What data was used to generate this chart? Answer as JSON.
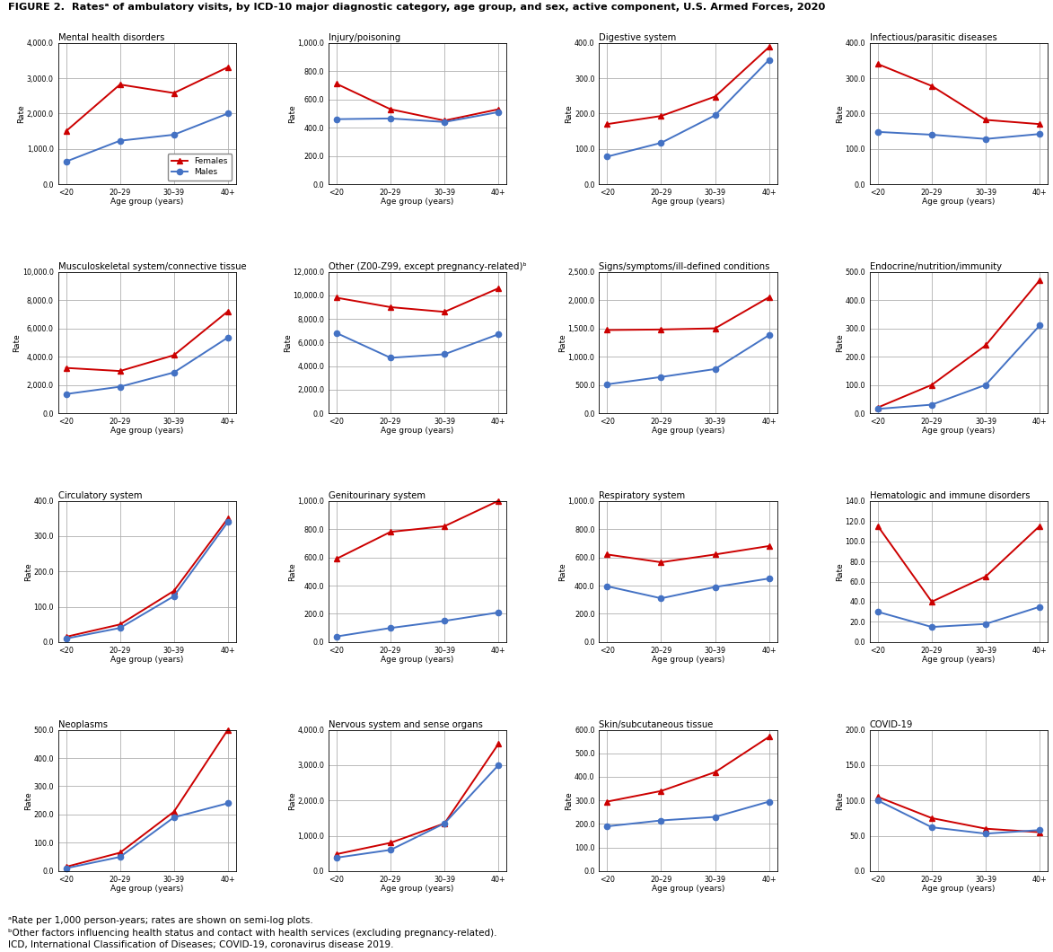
{
  "title": "FIGURE 2.  Ratesᵃ of ambulatory visits, by ICD-10 major diagnostic category, age group, and sex, active component, U.S. Armed Forces, 2020",
  "footnotes": [
    "ᵃRate per 1,000 person-years; rates are shown on semi-log plots.",
    "ᵇOther factors influencing health status and contact with health services (excluding pregnancy-related).",
    "ICD, International Classification of Diseases; COVID-19, coronavirus disease 2019."
  ],
  "x_labels": [
    "<20",
    "20–29",
    "30–39",
    "40+"
  ],
  "female_color": "#cc0000",
  "male_color": "#4472c4",
  "subplots": [
    {
      "title": "Mental health disorders",
      "females": [
        1500,
        2820,
        2580,
        3310
      ],
      "males": [
        640,
        1230,
        1400,
        2000
      ],
      "ylim": [
        0,
        4000
      ],
      "yticks": [
        0,
        1000,
        2000,
        3000,
        4000
      ],
      "yticklabels": [
        "0.0",
        "1,000.0",
        "2,000.0",
        "3,000.0",
        "4,000.0"
      ],
      "show_legend": true
    },
    {
      "title": "Injury/poisoning",
      "females": [
        710,
        530,
        450,
        530
      ],
      "males": [
        460,
        465,
        440,
        510
      ],
      "ylim": [
        0,
        1000
      ],
      "yticks": [
        0,
        200,
        400,
        600,
        800,
        1000
      ],
      "yticklabels": [
        "0.0",
        "200.0",
        "400.0",
        "600.0",
        "800.0",
        "1,000.0"
      ],
      "show_legend": false
    },
    {
      "title": "Digestive system",
      "females": [
        170,
        193,
        248,
        388
      ],
      "males": [
        78,
        117,
        195,
        352
      ],
      "ylim": [
        0,
        400
      ],
      "yticks": [
        0,
        100,
        200,
        300,
        400
      ],
      "yticklabels": [
        "0.0",
        "100.0",
        "200.0",
        "300.0",
        "400.0"
      ],
      "show_legend": false
    },
    {
      "title": "Infectious/parasitic diseases",
      "females": [
        340,
        278,
        182,
        170
      ],
      "males": [
        148,
        140,
        128,
        142
      ],
      "ylim": [
        0,
        400
      ],
      "yticks": [
        0,
        100,
        200,
        300,
        400
      ],
      "yticklabels": [
        "0.0",
        "100.0",
        "200.0",
        "300.0",
        "400.0"
      ],
      "show_legend": false
    },
    {
      "title": "Musculoskeletal system/connective tissue",
      "females": [
        3200,
        2980,
        4100,
        7200
      ],
      "males": [
        1350,
        1870,
        2880,
        5350
      ],
      "ylim": [
        0,
        10000
      ],
      "yticks": [
        0,
        2000,
        4000,
        6000,
        8000,
        10000
      ],
      "yticklabels": [
        "0.0",
        "2,000.0",
        "4,000.0",
        "6,000.0",
        "8,000.0",
        "10,000.0"
      ],
      "show_legend": false
    },
    {
      "title": "Other (Z00-Z99, except pregnancy-related)ᵇ",
      "females": [
        9800,
        9000,
        8600,
        10600
      ],
      "males": [
        6800,
        4700,
        5000,
        6700
      ],
      "ylim": [
        0,
        12000
      ],
      "yticks": [
        0,
        2000,
        4000,
        6000,
        8000,
        10000,
        12000
      ],
      "yticklabels": [
        "0.0",
        "2,000.0",
        "4,000.0",
        "6,000.0",
        "8,000.0",
        "10,000.0",
        "12,000.0"
      ],
      "show_legend": false
    },
    {
      "title": "Signs/symptoms/ill-defined conditions",
      "females": [
        1470,
        1480,
        1500,
        2050
      ],
      "males": [
        510,
        640,
        780,
        1380
      ],
      "ylim": [
        0,
        2500
      ],
      "yticks": [
        0,
        500,
        1000,
        1500,
        2000,
        2500
      ],
      "yticklabels": [
        "0.0",
        "500.0",
        "1,000.0",
        "1,500.0",
        "2,000.0",
        "2,500.0"
      ],
      "show_legend": false
    },
    {
      "title": "Endocrine/nutrition/immunity",
      "females": [
        20,
        100,
        240,
        470
      ],
      "males": [
        15,
        30,
        100,
        310
      ],
      "ylim": [
        0,
        500
      ],
      "yticks": [
        0,
        100,
        200,
        300,
        400,
        500
      ],
      "yticklabels": [
        "0.0",
        "100.0",
        "200.0",
        "300.0",
        "400.0",
        "500.0"
      ],
      "show_legend": false
    },
    {
      "title": "Circulatory system",
      "females": [
        15,
        50,
        145,
        350
      ],
      "males": [
        10,
        40,
        130,
        340
      ],
      "ylim": [
        0,
        400
      ],
      "yticks": [
        0,
        100,
        200,
        300,
        400
      ],
      "yticklabels": [
        "0.0",
        "100.0",
        "200.0",
        "300.0",
        "400.0"
      ],
      "show_legend": false
    },
    {
      "title": "Genitourinary system",
      "females": [
        590,
        780,
        820,
        1000
      ],
      "males": [
        40,
        100,
        150,
        210
      ],
      "ylim": [
        0,
        1000
      ],
      "yticks": [
        0,
        200,
        400,
        600,
        800,
        1000
      ],
      "yticklabels": [
        "0.0",
        "200.0",
        "400.0",
        "600.0",
        "800.0",
        "1,000.0"
      ],
      "show_legend": false
    },
    {
      "title": "Respiratory system",
      "females": [
        620,
        565,
        620,
        680
      ],
      "males": [
        395,
        310,
        390,
        450
      ],
      "ylim": [
        0,
        1000
      ],
      "yticks": [
        0,
        200,
        400,
        600,
        800,
        1000
      ],
      "yticklabels": [
        "0.0",
        "200.0",
        "400.0",
        "600.0",
        "800.0",
        "1,000.0"
      ],
      "show_legend": false
    },
    {
      "title": "Hematologic and immune disorders",
      "females": [
        115,
        40,
        65,
        115
      ],
      "males": [
        30,
        15,
        18,
        35
      ],
      "ylim": [
        0,
        140
      ],
      "yticks": [
        0,
        20,
        40,
        60,
        80,
        100,
        120,
        140
      ],
      "yticklabels": [
        "0.0",
        "20.0",
        "40.0",
        "60.0",
        "80.0",
        "100.0",
        "120.0",
        "140.0"
      ],
      "show_legend": false
    },
    {
      "title": "Neoplasms",
      "females": [
        15,
        65,
        210,
        500
      ],
      "males": [
        10,
        50,
        190,
        240
      ],
      "ylim": [
        0,
        500
      ],
      "yticks": [
        0,
        100,
        200,
        300,
        400,
        500
      ],
      "yticklabels": [
        "0.0",
        "100.0",
        "200.0",
        "300.0",
        "400.0",
        "500.0"
      ],
      "show_legend": false
    },
    {
      "title": "Nervous system and sense organs",
      "females": [
        480,
        800,
        1350,
        3600
      ],
      "males": [
        380,
        600,
        1350,
        3000
      ],
      "ylim": [
        0,
        4000
      ],
      "yticks": [
        0,
        1000,
        2000,
        3000,
        4000
      ],
      "yticklabels": [
        "0.0",
        "1,000.0",
        "2,000.0",
        "3,000.0",
        "4,000.0"
      ],
      "show_legend": false
    },
    {
      "title": "Skin/subcutaneous tissue",
      "females": [
        295,
        340,
        420,
        570
      ],
      "males": [
        190,
        215,
        230,
        295
      ],
      "ylim": [
        0,
        600
      ],
      "yticks": [
        0,
        100,
        200,
        300,
        400,
        500,
        600
      ],
      "yticklabels": [
        "0.0",
        "100.0",
        "200.0",
        "300.0",
        "400.0",
        "500.0",
        "600.0"
      ],
      "show_legend": false
    },
    {
      "title": "COVID-19",
      "females": [
        105,
        75,
        60,
        55
      ],
      "males": [
        100,
        62,
        53,
        58
      ],
      "ylim": [
        0,
        200
      ],
      "yticks": [
        0,
        50,
        100,
        150,
        200
      ],
      "yticklabels": [
        "0.0",
        "50.0",
        "100.0",
        "150.0",
        "200.0"
      ],
      "show_legend": false
    }
  ]
}
